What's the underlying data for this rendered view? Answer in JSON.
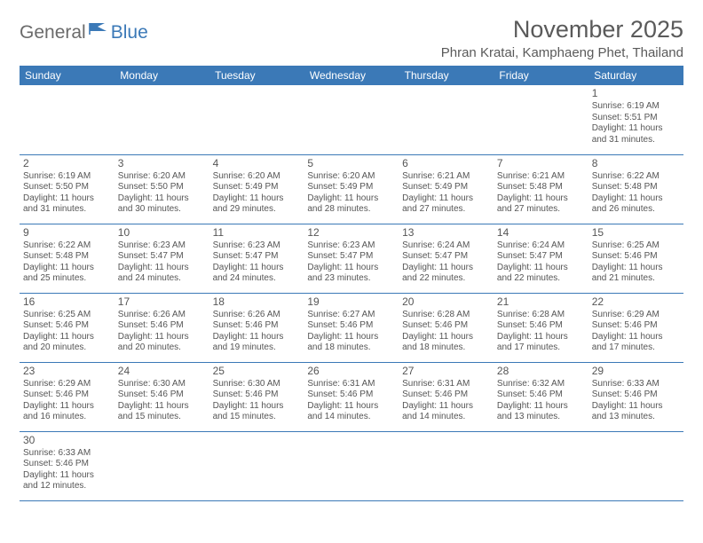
{
  "logo": {
    "part1": "General",
    "part2": "Blue"
  },
  "title": "November 2025",
  "location": "Phran Kratai, Kamphaeng Phet, Thailand",
  "colors": {
    "header_bg": "#3b79b7",
    "header_text": "#ffffff",
    "border": "#3b79b7",
    "text": "#555555",
    "logo_gray": "#6b6b6b",
    "logo_blue": "#3b79b7"
  },
  "day_headers": [
    "Sunday",
    "Monday",
    "Tuesday",
    "Wednesday",
    "Thursday",
    "Friday",
    "Saturday"
  ],
  "weeks": [
    [
      null,
      null,
      null,
      null,
      null,
      null,
      {
        "n": "1",
        "sr": "Sunrise: 6:19 AM",
        "ss": "Sunset: 5:51 PM",
        "d1": "Daylight: 11 hours",
        "d2": "and 31 minutes."
      }
    ],
    [
      {
        "n": "2",
        "sr": "Sunrise: 6:19 AM",
        "ss": "Sunset: 5:50 PM",
        "d1": "Daylight: 11 hours",
        "d2": "and 31 minutes."
      },
      {
        "n": "3",
        "sr": "Sunrise: 6:20 AM",
        "ss": "Sunset: 5:50 PM",
        "d1": "Daylight: 11 hours",
        "d2": "and 30 minutes."
      },
      {
        "n": "4",
        "sr": "Sunrise: 6:20 AM",
        "ss": "Sunset: 5:49 PM",
        "d1": "Daylight: 11 hours",
        "d2": "and 29 minutes."
      },
      {
        "n": "5",
        "sr": "Sunrise: 6:20 AM",
        "ss": "Sunset: 5:49 PM",
        "d1": "Daylight: 11 hours",
        "d2": "and 28 minutes."
      },
      {
        "n": "6",
        "sr": "Sunrise: 6:21 AM",
        "ss": "Sunset: 5:49 PM",
        "d1": "Daylight: 11 hours",
        "d2": "and 27 minutes."
      },
      {
        "n": "7",
        "sr": "Sunrise: 6:21 AM",
        "ss": "Sunset: 5:48 PM",
        "d1": "Daylight: 11 hours",
        "d2": "and 27 minutes."
      },
      {
        "n": "8",
        "sr": "Sunrise: 6:22 AM",
        "ss": "Sunset: 5:48 PM",
        "d1": "Daylight: 11 hours",
        "d2": "and 26 minutes."
      }
    ],
    [
      {
        "n": "9",
        "sr": "Sunrise: 6:22 AM",
        "ss": "Sunset: 5:48 PM",
        "d1": "Daylight: 11 hours",
        "d2": "and 25 minutes."
      },
      {
        "n": "10",
        "sr": "Sunrise: 6:23 AM",
        "ss": "Sunset: 5:47 PM",
        "d1": "Daylight: 11 hours",
        "d2": "and 24 minutes."
      },
      {
        "n": "11",
        "sr": "Sunrise: 6:23 AM",
        "ss": "Sunset: 5:47 PM",
        "d1": "Daylight: 11 hours",
        "d2": "and 24 minutes."
      },
      {
        "n": "12",
        "sr": "Sunrise: 6:23 AM",
        "ss": "Sunset: 5:47 PM",
        "d1": "Daylight: 11 hours",
        "d2": "and 23 minutes."
      },
      {
        "n": "13",
        "sr": "Sunrise: 6:24 AM",
        "ss": "Sunset: 5:47 PM",
        "d1": "Daylight: 11 hours",
        "d2": "and 22 minutes."
      },
      {
        "n": "14",
        "sr": "Sunrise: 6:24 AM",
        "ss": "Sunset: 5:47 PM",
        "d1": "Daylight: 11 hours",
        "d2": "and 22 minutes."
      },
      {
        "n": "15",
        "sr": "Sunrise: 6:25 AM",
        "ss": "Sunset: 5:46 PM",
        "d1": "Daylight: 11 hours",
        "d2": "and 21 minutes."
      }
    ],
    [
      {
        "n": "16",
        "sr": "Sunrise: 6:25 AM",
        "ss": "Sunset: 5:46 PM",
        "d1": "Daylight: 11 hours",
        "d2": "and 20 minutes."
      },
      {
        "n": "17",
        "sr": "Sunrise: 6:26 AM",
        "ss": "Sunset: 5:46 PM",
        "d1": "Daylight: 11 hours",
        "d2": "and 20 minutes."
      },
      {
        "n": "18",
        "sr": "Sunrise: 6:26 AM",
        "ss": "Sunset: 5:46 PM",
        "d1": "Daylight: 11 hours",
        "d2": "and 19 minutes."
      },
      {
        "n": "19",
        "sr": "Sunrise: 6:27 AM",
        "ss": "Sunset: 5:46 PM",
        "d1": "Daylight: 11 hours",
        "d2": "and 18 minutes."
      },
      {
        "n": "20",
        "sr": "Sunrise: 6:28 AM",
        "ss": "Sunset: 5:46 PM",
        "d1": "Daylight: 11 hours",
        "d2": "and 18 minutes."
      },
      {
        "n": "21",
        "sr": "Sunrise: 6:28 AM",
        "ss": "Sunset: 5:46 PM",
        "d1": "Daylight: 11 hours",
        "d2": "and 17 minutes."
      },
      {
        "n": "22",
        "sr": "Sunrise: 6:29 AM",
        "ss": "Sunset: 5:46 PM",
        "d1": "Daylight: 11 hours",
        "d2": "and 17 minutes."
      }
    ],
    [
      {
        "n": "23",
        "sr": "Sunrise: 6:29 AM",
        "ss": "Sunset: 5:46 PM",
        "d1": "Daylight: 11 hours",
        "d2": "and 16 minutes."
      },
      {
        "n": "24",
        "sr": "Sunrise: 6:30 AM",
        "ss": "Sunset: 5:46 PM",
        "d1": "Daylight: 11 hours",
        "d2": "and 15 minutes."
      },
      {
        "n": "25",
        "sr": "Sunrise: 6:30 AM",
        "ss": "Sunset: 5:46 PM",
        "d1": "Daylight: 11 hours",
        "d2": "and 15 minutes."
      },
      {
        "n": "26",
        "sr": "Sunrise: 6:31 AM",
        "ss": "Sunset: 5:46 PM",
        "d1": "Daylight: 11 hours",
        "d2": "and 14 minutes."
      },
      {
        "n": "27",
        "sr": "Sunrise: 6:31 AM",
        "ss": "Sunset: 5:46 PM",
        "d1": "Daylight: 11 hours",
        "d2": "and 14 minutes."
      },
      {
        "n": "28",
        "sr": "Sunrise: 6:32 AM",
        "ss": "Sunset: 5:46 PM",
        "d1": "Daylight: 11 hours",
        "d2": "and 13 minutes."
      },
      {
        "n": "29",
        "sr": "Sunrise: 6:33 AM",
        "ss": "Sunset: 5:46 PM",
        "d1": "Daylight: 11 hours",
        "d2": "and 13 minutes."
      }
    ],
    [
      {
        "n": "30",
        "sr": "Sunrise: 6:33 AM",
        "ss": "Sunset: 5:46 PM",
        "d1": "Daylight: 11 hours",
        "d2": "and 12 minutes."
      },
      null,
      null,
      null,
      null,
      null,
      null
    ]
  ]
}
